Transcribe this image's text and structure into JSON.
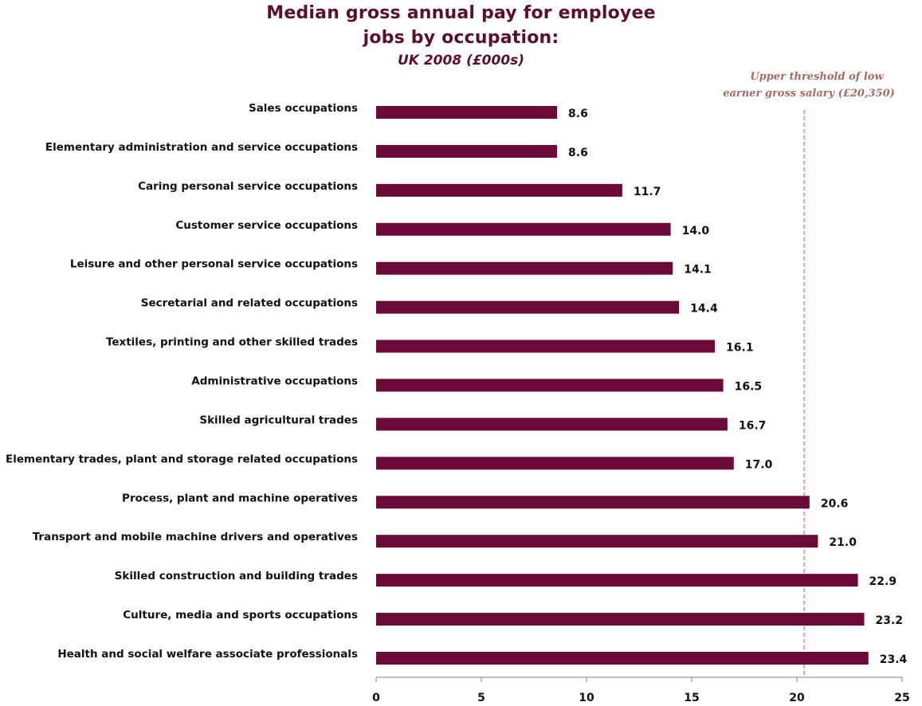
{
  "chart_data": {
    "type": "bar",
    "orientation": "horizontal",
    "title_line1": "Median gross annual pay for employee",
    "title_line2": "jobs by occupation:",
    "subtitle": "UK 2008 (£000s)",
    "categories": [
      "Sales occupations",
      "Elementary administration  and service occupations",
      "Caring personal service occupations",
      "Customer service occupations",
      "Leisure and other personal service occupations",
      "Secretarial and related occupations",
      "Textiles, printing and other skilled trades",
      "Administrative  occupations",
      "Skilled agricultural  trades",
      "Elementary trades, plant and storage related occupations",
      "Process, plant and machine operatives",
      "Transport and mobile machine drivers and operatives",
      "Skilled construction and building trades",
      "Culture, media and sports occupations",
      "Health and social welfare associate professionals"
    ],
    "values": [
      8.6,
      8.6,
      11.7,
      14.0,
      14.1,
      14.4,
      16.1,
      16.5,
      16.7,
      17.0,
      20.6,
      21.0,
      22.9,
      23.2,
      23.4
    ],
    "value_labels": [
      "8.6",
      "8.6",
      "11.7",
      "14.0",
      "14.1",
      "14.4",
      "16.1",
      "16.5",
      "16.7",
      "17.0",
      "20.6",
      "21.0",
      "22.9",
      "23.2",
      "23.4"
    ],
    "xlim": [
      0,
      25
    ],
    "xticks": [
      0,
      5,
      10,
      15,
      20,
      25
    ],
    "threshold": {
      "value": 20.35,
      "label_line1": "Upper threshold of low",
      "label_line2": "earner gross salary (£20,350)",
      "color": "#d9a3a3"
    },
    "bar_color": "#6b0a37",
    "title_color": "#5b0f30",
    "grid": false,
    "legend": "none"
  }
}
